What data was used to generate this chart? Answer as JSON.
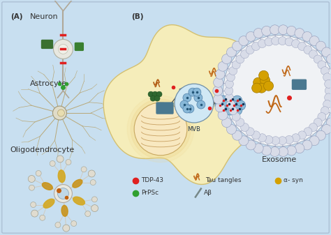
{
  "background_color": "#c8dff0",
  "border_color": "#b0c4d8",
  "panel_a_label": "(A)",
  "panel_b_label": "(B)",
  "cell_label_neuron": "Neuron",
  "cell_label_astrocyte": "Astrocyte",
  "cell_label_oligodendrocyte": "Oligodendrocyte",
  "exosome_label": "Exosome",
  "mvb_label": "MVB",
  "text_color": "#333333",
  "arrow_color": "#444444",
  "dashed_color": "#8899aa",
  "cell_fill": "#f5edba",
  "cell_edge": "#d4c070",
  "nucleus_fill": "#f8e8c0",
  "nucleus_edge": "#c8a860",
  "mvb_fill": "#d0e8f5",
  "mvb_edge": "#7090a8",
  "vesicle_fill": "#88b8d8",
  "vesicle_edge": "#5080a8",
  "exo_bg": "#f0f2f5",
  "exo_edge": "#9099b0",
  "lipid_fill": "#d8dce8",
  "lipid_edge": "#9099b8",
  "neuron_line": "#b0a898",
  "neuron_soma": "#e8e8e0",
  "astrocyte_line": "#b8a878",
  "astrocyte_soma": "#e0dcc8",
  "oligo_line": "#d0ccc0",
  "oligo_soma": "#e8e8e0",
  "oligo_center": "#c0d8e8",
  "oligo_myelin": "#d4a820",
  "tangle_color": "#c06818",
  "alpha_syn_color": "#d4a000",
  "tdp43_color": "#e02020",
  "prpsc_color": "#30a030",
  "teal_rect": "#4a7890",
  "legend_tdp43": "TDP-43",
  "legend_prpsc": "PrPSc",
  "legend_tangles": "Tau tangles",
  "legend_abeta": "Aβ",
  "legend_alphasyn": "α- syn"
}
